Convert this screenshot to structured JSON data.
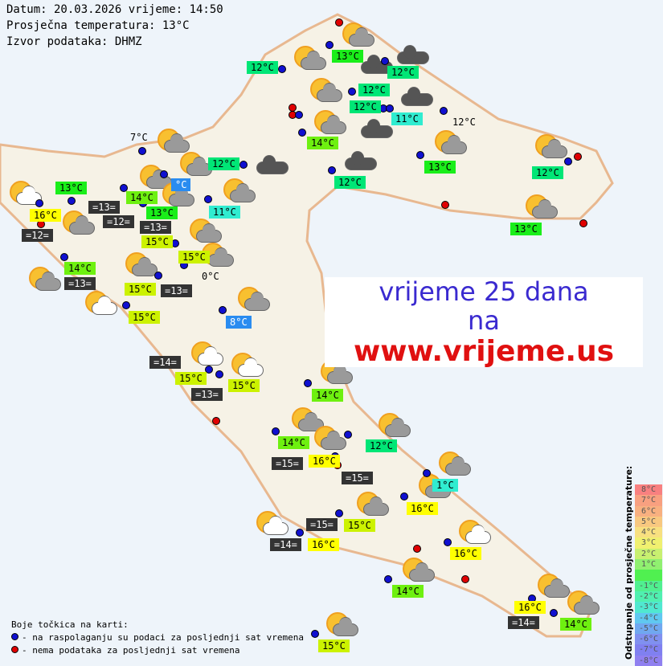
{
  "header": {
    "date_line": "Datum: 20.03.2026 vrijeme: 14:50",
    "avg_temp_line": "Prosječna temperatura: 13°C",
    "source_line": "Izvor podataka: DHMZ"
  },
  "promo": {
    "line1": "vrijeme 25 dana",
    "line2": "na",
    "url": "www.vrijeme.us"
  },
  "legend": {
    "title": "Boje točkica na karti:",
    "blue": "- na raspolaganju su podaci za posljednji sat vremena",
    "red": "- nema podataka za posljednji sat vremena",
    "colors": {
      "available": "#1010d0",
      "missing": "#e00000"
    }
  },
  "scale": {
    "title": "Odstupanje od prosječne temperature:",
    "steps": [
      "8°C",
      "7°C",
      "6°C",
      "5°C",
      "4°C",
      "3°C",
      "2°C",
      "1°C",
      "",
      "-1°C",
      "-2°C",
      "-3°C",
      "-4°C",
      "-5°C",
      "-6°C",
      "-7°C",
      "-8°C"
    ],
    "colors": [
      "#f88080",
      "#f8a080",
      "#f8b080",
      "#f8c880",
      "#f8e080",
      "#f0f070",
      "#c8f070",
      "#90f070",
      "#50f050",
      "#50f090",
      "#50f0b0",
      "#50e8d0",
      "#60c8f0",
      "#70a8f0",
      "#8090f0",
      "#8080f0",
      "#9080f0"
    ]
  },
  "labels": [
    "12°C",
    "13°C",
    "12°C",
    "12°C",
    "12°C",
    "11°C",
    "12°C",
    "14°C",
    "12°C",
    "7°C",
    "13°C",
    "14°C",
    "°C",
    "12°C",
    "13°C",
    "12°C",
    "11°C",
    "16°C",
    "=13=",
    "=12=",
    "13°C",
    "=13=",
    "15°C",
    "=12=",
    "13°C",
    "15°C",
    "14°C",
    "=13=",
    "15°C",
    "=13=",
    "0°C",
    "15°C",
    "8°C",
    "=14=",
    "15°C",
    "15°C",
    "=13=",
    "14°C",
    "14°C",
    "12°C",
    "=15=",
    "16°C",
    "=15=",
    "1°C",
    "16°C",
    "=15=",
    "15°C",
    "=14=",
    "16°C",
    "16°C",
    "14°C",
    "16°C",
    "=14=",
    "14°C",
    "15°C"
  ]
}
